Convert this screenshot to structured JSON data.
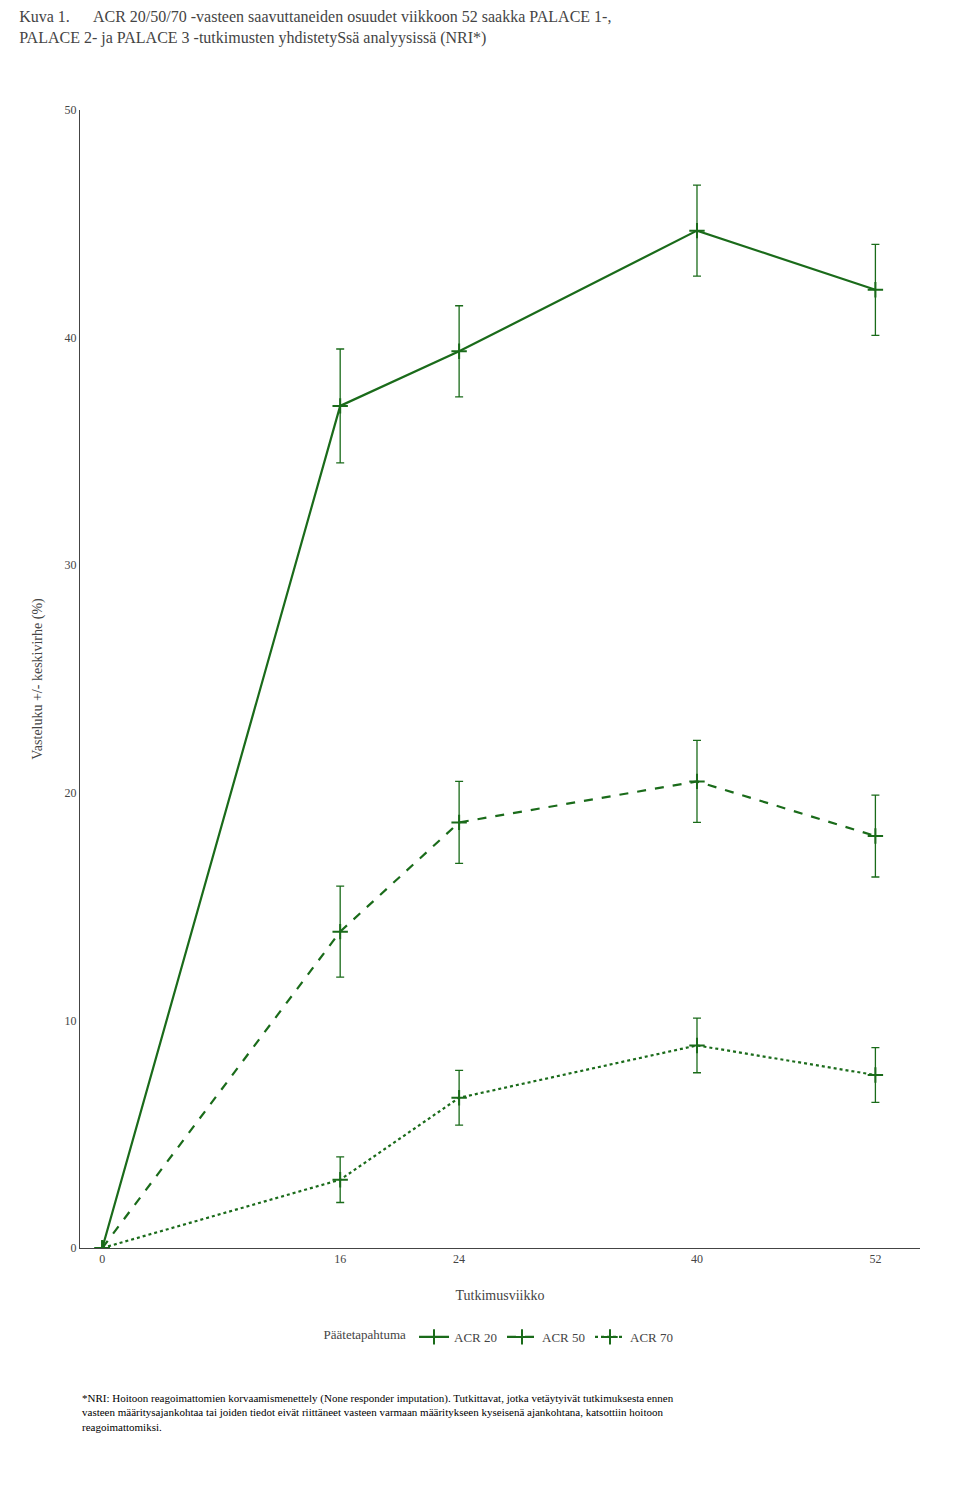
{
  "chart_data": {
    "type": "line",
    "title": "Kuva 1.      ACR 20/50/70 -vasteen saavuttaneiden osuudet viikkoon 52 saakka PALACE 1-,\nPALACE 2- ja PALACE 3 -tutkimusten yhdistetySsä analyysissä (NRI*)",
    "x_label": "Tutkimusviikko",
    "y_label": "Vasteluku +/- keskivirhe (%)",
    "x": [
      0,
      16,
      24,
      40,
      52
    ],
    "series": [
      {
        "name": "ACR 20",
        "color": "#1a6b1a",
        "line_style": "solid",
        "marker": "plus",
        "values": [
          0,
          37.0,
          39.4,
          44.7,
          42.1
        ],
        "errors": [
          0,
          2.5,
          2.0,
          2.0,
          2.0
        ]
      },
      {
        "name": "ACR 50",
        "color": "#1a6b1a",
        "line_style": "dash",
        "marker": "plus",
        "values": [
          0,
          13.9,
          18.7,
          20.5,
          18.1
        ],
        "errors": [
          0,
          2.0,
          1.8,
          1.8,
          1.8
        ]
      },
      {
        "name": "ACR 70",
        "color": "#1a6b1a",
        "line_style": "dot",
        "marker": "plus",
        "values": [
          0,
          3.0,
          6.6,
          8.9,
          7.6
        ],
        "errors": [
          0,
          1.0,
          1.2,
          1.2,
          1.2
        ]
      }
    ],
    "xlim": [
      -1.5,
      55
    ],
    "xticks": [
      0,
      16,
      24,
      40,
      52
    ],
    "ylim": [
      0,
      50
    ],
    "yticks": [
      0,
      10,
      20,
      30,
      40,
      50
    ],
    "grid": false,
    "legend": "bottom",
    "legend_title": "Päätetapahtuma",
    "annotations": [
      "*NRI: Hoitoon reagoimattomien korvaamismenettely (None responder imputation). Tutkittavat, jotka vetäytyivät tutkimuksesta ennen",
      "vasteen määritysajankohtaa tai joiden tiedot eivät riittäneet vasteen varmaan määritykseen kyseisenä ajankohtana, katsottiin hoitoon",
      "reagoimattomiksi."
    ]
  }
}
